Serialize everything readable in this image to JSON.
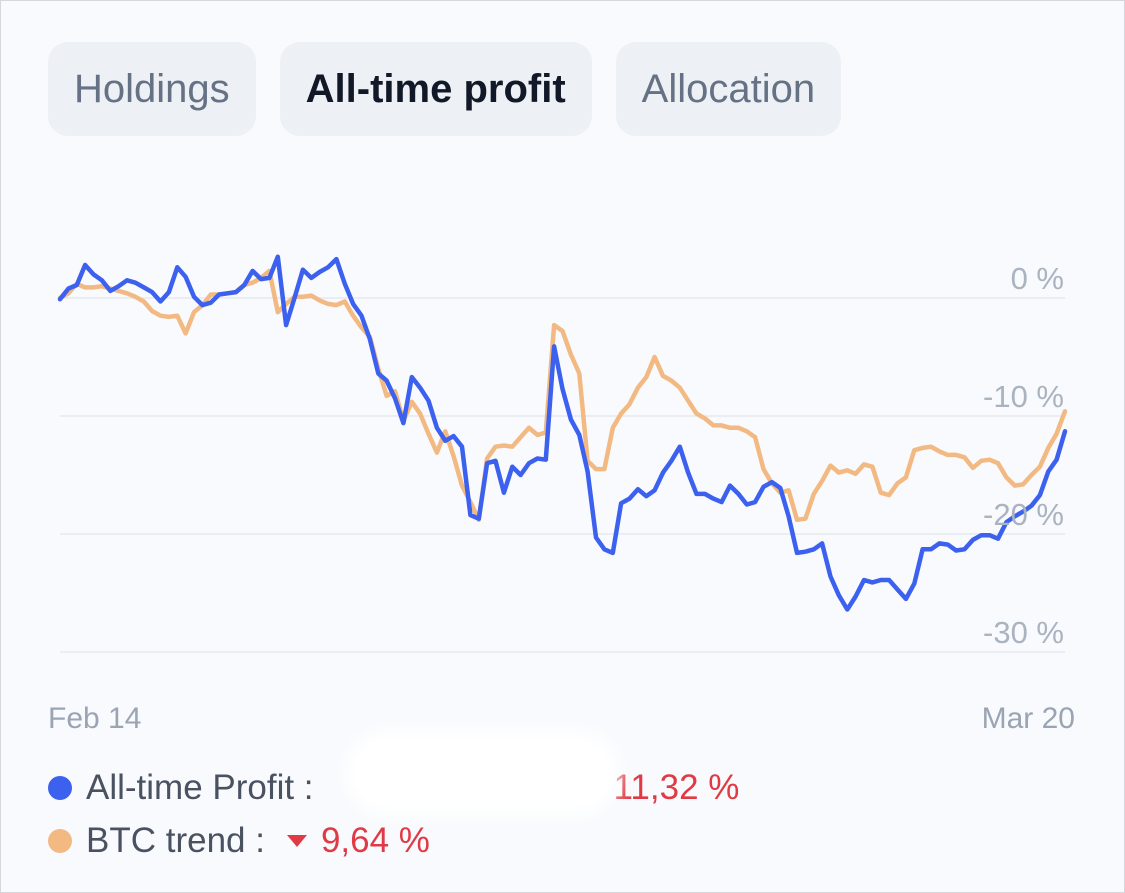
{
  "tabs": [
    {
      "label": "Holdings",
      "active": false
    },
    {
      "label": "All-time profit",
      "active": true
    },
    {
      "label": "Allocation",
      "active": false
    }
  ],
  "colors": {
    "profit": "#3c61ef",
    "btc": "#f2b982",
    "negative": "#e03b45",
    "grid": "#e6e9ee"
  },
  "chart_data": {
    "type": "line",
    "title": "",
    "xlabel": "",
    "ylabel": "",
    "x_start_label": "Feb 14",
    "x_end_label": "Mar 20",
    "ylim": [
      -30,
      0
    ],
    "y_ticks": [
      0,
      -10,
      -20,
      -30
    ],
    "y_tick_labels": [
      "0 %",
      "-10 %",
      "-20 %",
      "-30 %"
    ],
    "grid": true,
    "legend_position": "bottom-left",
    "series": [
      {
        "name": "All-time Profit",
        "color": "#3c61ef",
        "values": [
          -0.1,
          0.8,
          1.1,
          2.8,
          2.0,
          1.5,
          0.6,
          1.0,
          1.5,
          1.3,
          0.9,
          0.5,
          -0.3,
          0.5,
          2.6,
          1.8,
          0.1,
          -0.6,
          -0.4,
          0.3,
          0.4,
          0.5,
          1.1,
          2.3,
          1.6,
          1.7,
          3.5,
          -2.3,
          0.0,
          2.4,
          1.7,
          2.2,
          2.6,
          3.3,
          1.2,
          -0.5,
          -1.5,
          -3.5,
          -6.4,
          -7.0,
          -8.5,
          -10.6,
          -6.7,
          -7.6,
          -8.7,
          -11.0,
          -12.1,
          -11.7,
          -12.6,
          -18.4,
          -18.7,
          -14.0,
          -13.8,
          -16.5,
          -14.3,
          -15.0,
          -14.0,
          -13.6,
          -13.7,
          -4.1,
          -7.7,
          -10.3,
          -11.6,
          -14.7,
          -20.3,
          -21.3,
          -21.6,
          -17.4,
          -17.0,
          -16.2,
          -16.8,
          -16.3,
          -14.8,
          -13.8,
          -12.6,
          -14.8,
          -16.6,
          -16.6,
          -17.0,
          -17.3,
          -15.9,
          -16.6,
          -17.5,
          -17.3,
          -16.0,
          -15.6,
          -16.1,
          -18.5,
          -21.6,
          -21.5,
          -21.3,
          -20.8,
          -23.6,
          -25.2,
          -26.4,
          -25.3,
          -23.9,
          -24.1,
          -23.9,
          -23.9,
          -24.7,
          -25.5,
          -24.2,
          -21.3,
          -21.3,
          -20.8,
          -20.9,
          -21.4,
          -21.3,
          -20.5,
          -20.1,
          -20.1,
          -20.4,
          -19.0,
          -18.5,
          -18.1,
          -17.6,
          -16.7,
          -14.7,
          -13.7,
          -11.3
        ]
      },
      {
        "name": "BTC trend",
        "color": "#f2b982",
        "values": [
          0.0,
          0.4,
          1.2,
          0.9,
          0.9,
          1.0,
          0.8,
          0.6,
          0.4,
          0.1,
          -0.3,
          -1.1,
          -1.5,
          -1.6,
          -1.5,
          -3.0,
          -1.2,
          -0.6,
          0.3,
          0.3,
          0.4,
          0.5,
          1.1,
          1.3,
          1.7,
          2.3,
          -1.2,
          -0.5,
          0.1,
          0.1,
          0.2,
          -0.2,
          -0.5,
          -0.6,
          -0.3,
          -1.5,
          -2.5,
          -3.3,
          -6.0,
          -8.3,
          -7.9,
          -10.4,
          -8.8,
          -9.8,
          -11.5,
          -13.1,
          -11.3,
          -13.4,
          -15.9,
          -17.3,
          -18.8,
          -13.6,
          -12.6,
          -12.5,
          -12.6,
          -11.8,
          -11.0,
          -11.6,
          -11.4,
          -2.3,
          -2.8,
          -4.8,
          -6.4,
          -13.8,
          -14.5,
          -14.5,
          -11.0,
          -9.8,
          -9.0,
          -7.6,
          -6.7,
          -5.0,
          -6.6,
          -7.0,
          -7.6,
          -8.7,
          -9.8,
          -10.2,
          -10.8,
          -10.8,
          -11.0,
          -11.0,
          -11.3,
          -11.8,
          -14.5,
          -15.7,
          -16.5,
          -16.3,
          -18.8,
          -18.7,
          -16.6,
          -15.5,
          -14.2,
          -14.8,
          -14.6,
          -14.9,
          -14.1,
          -14.3,
          -16.5,
          -16.7,
          -15.7,
          -15.2,
          -12.9,
          -12.7,
          -12.6,
          -13.0,
          -13.3,
          -13.3,
          -13.5,
          -14.4,
          -13.8,
          -13.7,
          -14.0,
          -15.2,
          -15.9,
          -15.8,
          -15.0,
          -14.3,
          -12.7,
          -11.5,
          -9.6
        ]
      }
    ]
  },
  "legend": {
    "profit_label": "All-time Profit :",
    "profit_value": "11,32 %",
    "btc_label": "BTC trend :",
    "btc_value": "9,64 %"
  }
}
